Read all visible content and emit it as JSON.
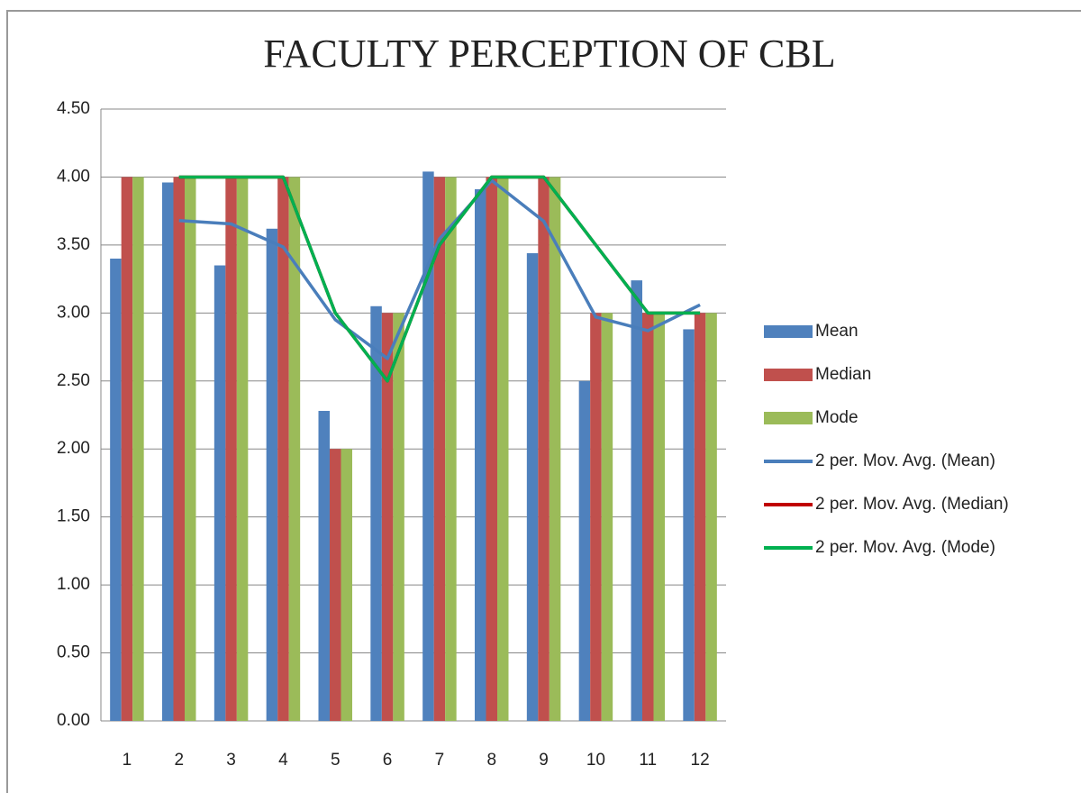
{
  "chart_data": {
    "type": "bar",
    "title": "FACULTY PERCEPTION OF CBL",
    "categories": [
      "1",
      "2",
      "3",
      "4",
      "5",
      "6",
      "7",
      "8",
      "9",
      "10",
      "11",
      "12"
    ],
    "series": [
      {
        "name": "Mean",
        "type": "bar",
        "color": "#4f81bd",
        "values": [
          3.4,
          3.96,
          3.35,
          3.62,
          2.28,
          3.05,
          4.04,
          3.91,
          3.44,
          2.5,
          3.24,
          2.88
        ]
      },
      {
        "name": "Median",
        "type": "bar",
        "color": "#c0504d",
        "values": [
          4,
          4,
          4,
          4,
          2,
          3,
          4,
          4,
          4,
          3,
          3,
          3
        ]
      },
      {
        "name": "Mode",
        "type": "bar",
        "color": "#9bbb59",
        "values": [
          4,
          4,
          4,
          4,
          2,
          3,
          4,
          4,
          4,
          3,
          3,
          3
        ]
      },
      {
        "name": "2 per. Mov. Avg. (Mean)",
        "type": "line",
        "color": "#4a7ebb",
        "values": [
          null,
          3.68,
          3.655,
          3.485,
          2.95,
          2.665,
          3.545,
          3.975,
          3.675,
          2.97,
          2.87,
          3.06
        ]
      },
      {
        "name": "2 per. Mov. Avg. (Median)",
        "type": "line",
        "color": "#c00000",
        "values": [
          null,
          4,
          4,
          4,
          3,
          2.5,
          3.5,
          4,
          4,
          3.5,
          3,
          3
        ]
      },
      {
        "name": "2 per. Mov. Avg. (Mode)",
        "type": "line",
        "color": "#00b050",
        "values": [
          null,
          4,
          4,
          4,
          3,
          2.5,
          3.5,
          4,
          4,
          3.5,
          3,
          3
        ]
      }
    ],
    "ylim": [
      0,
      4.5
    ],
    "yticks": [
      {
        "value": 0,
        "label": "0.00"
      },
      {
        "value": 0.5,
        "label": "0.50"
      },
      {
        "value": 1,
        "label": "1.00"
      },
      {
        "value": 1.5,
        "label": "1.50"
      },
      {
        "value": 2,
        "label": "2.00"
      },
      {
        "value": 2.5,
        "label": "2.50"
      },
      {
        "value": 3,
        "label": "3.00"
      },
      {
        "value": 3.5,
        "label": "3.50"
      },
      {
        "value": 4,
        "label": "4.00"
      },
      {
        "value": 4.5,
        "label": "4.50"
      }
    ],
    "grid": true,
    "legend": "right"
  }
}
